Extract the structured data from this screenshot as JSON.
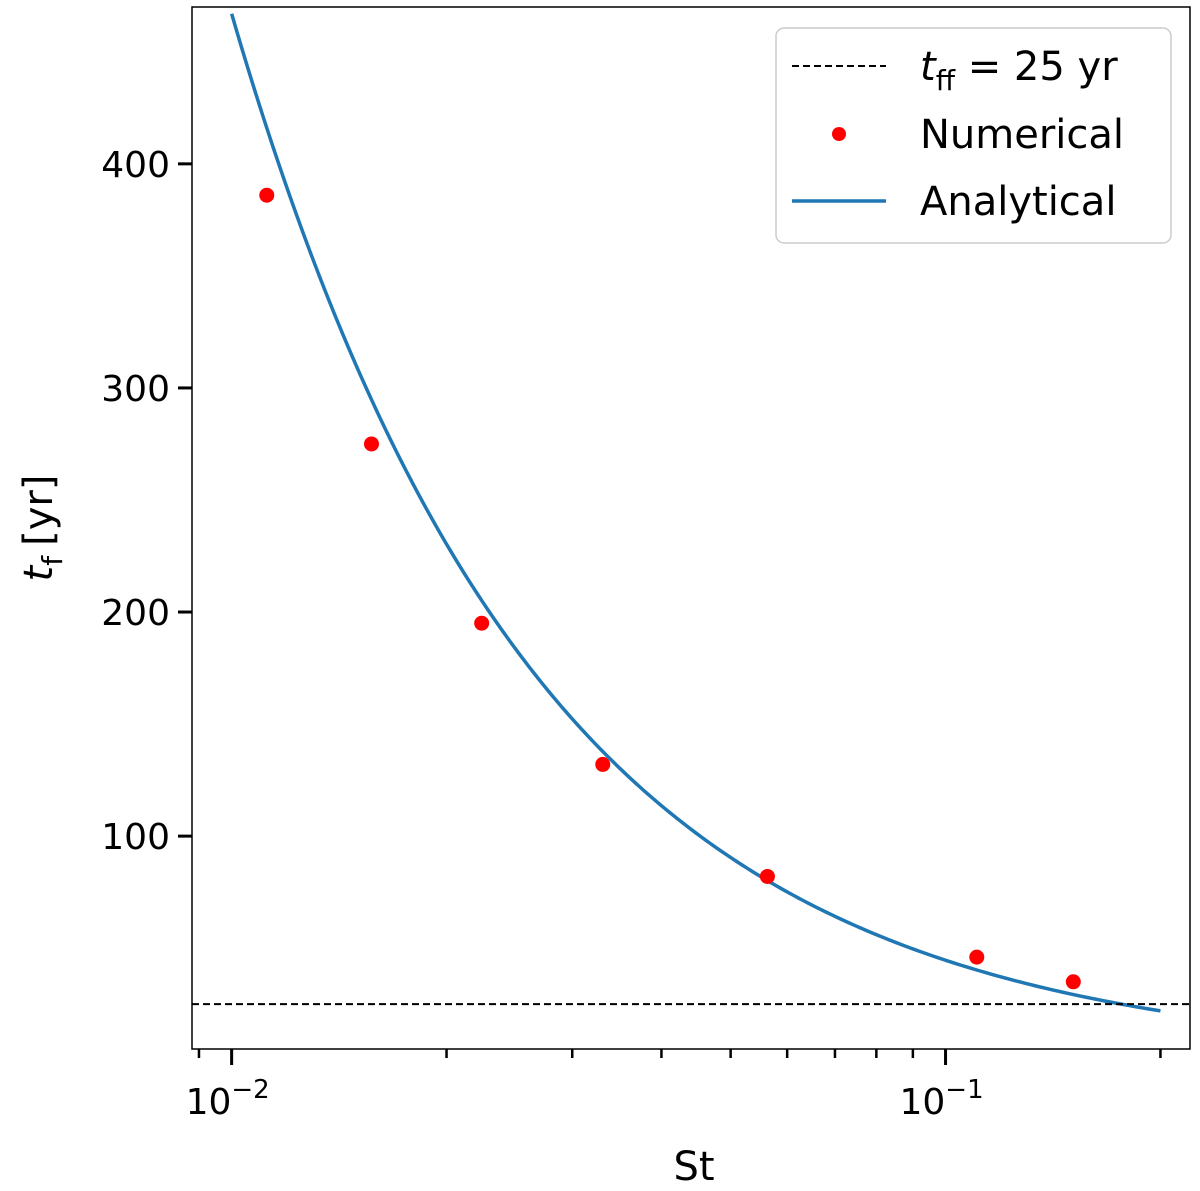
{
  "chart_data": {
    "type": "scatter",
    "title": "",
    "xlabel": "St",
    "ylabel_main": "t",
    "ylabel_sub": "f",
    "ylabel_unit": "[yr]",
    "xscale": "log",
    "xlim": [
      0.0088,
      0.22
    ],
    "ylim": [
      5,
      470
    ],
    "yticks": [
      {
        "value": 100,
        "label": "100"
      },
      {
        "value": 200,
        "label": "200"
      },
      {
        "value": 300,
        "label": "300"
      },
      {
        "value": 400,
        "label": "400"
      }
    ],
    "xticks_major": [
      {
        "value": 0.01,
        "base": "10",
        "exp": "−2"
      },
      {
        "value": 0.1,
        "base": "10",
        "exp": "−1"
      }
    ],
    "xticks_minor": [
      0.009,
      0.02,
      0.03,
      0.04,
      0.05,
      0.06,
      0.07,
      0.08,
      0.09,
      0.2
    ],
    "series": [
      {
        "name": "Analytical",
        "kind": "line",
        "color": "#1f77b4",
        "model": "power-law",
        "x_range": [
          0.01,
          0.2
        ],
        "y_endpoints": [
          467,
          22
        ]
      },
      {
        "name": "Numerical",
        "kind": "scatter",
        "color": "#ff0000",
        "points": [
          {
            "x": 0.0112,
            "y": 386
          },
          {
            "x": 0.0157,
            "y": 275
          },
          {
            "x": 0.0224,
            "y": 195
          },
          {
            "x": 0.0331,
            "y": 132
          },
          {
            "x": 0.0563,
            "y": 82
          },
          {
            "x": 0.1106,
            "y": 46
          },
          {
            "x": 0.151,
            "y": 35
          }
        ]
      },
      {
        "name": "t_ff = 25 yr",
        "kind": "hline",
        "color": "#000000",
        "y": 25
      }
    ],
    "legend": {
      "position": "upper right",
      "entries": [
        {
          "kind": "hline",
          "main": "t",
          "sub": "ff",
          "rest": " = 25 yr"
        },
        {
          "kind": "scatter",
          "text": "Numerical"
        },
        {
          "kind": "line",
          "text": "Analytical"
        }
      ]
    }
  }
}
